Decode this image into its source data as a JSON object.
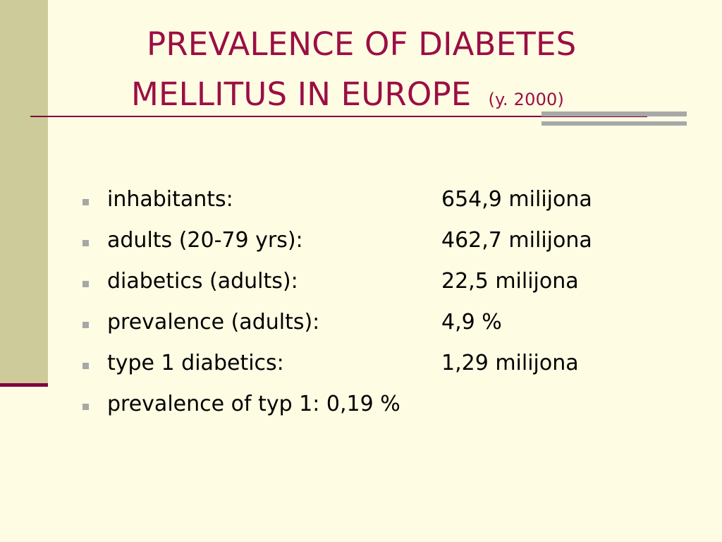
{
  "title": {
    "line1": "PREVALENCE OF DIABETES",
    "line2": "MELLITUS IN EUROPE",
    "subtitle": "(y. 2000)"
  },
  "items": [
    {
      "label": "inhabitants:",
      "value": "654,9 milijona"
    },
    {
      "label": "adults (20-79 yrs):",
      "value": "462,7 milijona"
    },
    {
      "label": "diabetics (adults):",
      "value": "22,5 milijona"
    },
    {
      "label": "prevalence (adults):",
      "value": "4,9 %"
    },
    {
      "label": "type 1 diabetics:",
      "value": "1,29 milijona"
    },
    {
      "label": "prevalence of typ 1: 0,19 %",
      "value": ""
    }
  ],
  "colors": {
    "background": "#FEFCE3",
    "sidebar": "#CDCB9A",
    "accent": "#800040",
    "title": "#9B0E45",
    "bullet": "#A7A7A7",
    "decor_bar": "#A8A8A8"
  }
}
